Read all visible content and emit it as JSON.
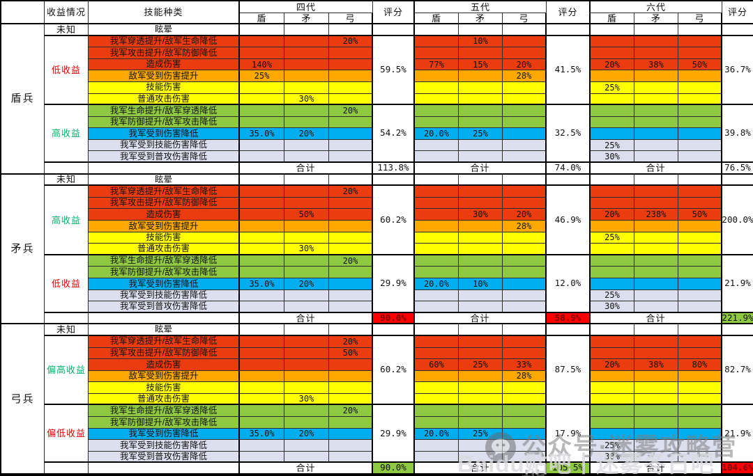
{
  "header": {
    "benefit_col": "收益情况",
    "skill_col": "技能种类",
    "score_col": "评分",
    "generations": [
      "四代",
      "五代",
      "六代"
    ],
    "unit_cols": [
      "盾",
      "矛",
      "弓"
    ]
  },
  "total_label": "合计",
  "skills": [
    "眩晕",
    "我军穿透提升/敌军生命降低",
    "我军攻击提升/敌军防御降低",
    "造成伤害",
    "敌军受到伤害提升",
    "技能伤害",
    "普通攻击伤害",
    "我军生命提升/敌军穿透降低",
    "我军防御提升/敌军攻击降低",
    "我军受到伤害降低",
    "我军受到技能伤害降低",
    "我军受到普攻伤害降低"
  ],
  "row_styles": [
    "white",
    "red",
    "red",
    "red",
    "orange",
    "yellow",
    "yellow",
    "green",
    "green",
    "blue",
    "lavender",
    "lavender"
  ],
  "palette": {
    "white": "#FFFFFF",
    "red": "#EA3C0E",
    "orange": "#FFA800",
    "yellow": "#FFFF00",
    "green": "#8FC841",
    "blue": "#00AEEF",
    "lavender": "#DBDFEE",
    "total_red": "#FF0000",
    "total_red_text": "#7A0505",
    "total_green": "#8FC841",
    "benefit_low_text": "#E60000",
    "benefit_high_text": "#00B26B"
  },
  "sections": [
    {
      "troop": "盾兵",
      "unknown": "未知",
      "group1": {
        "label": "低收益",
        "color": "#E60000"
      },
      "group2": {
        "label": "高收益",
        "color": "#00B26B"
      },
      "gens": [
        {
          "values": [
            [
              "",
              "",
              ""
            ],
            [
              "",
              "",
              "20%"
            ],
            [
              "",
              "",
              ""
            ],
            [
              "140%",
              "",
              ""
            ],
            [
              "25%",
              "",
              ""
            ],
            [
              "",
              "",
              ""
            ],
            [
              "",
              "30%",
              ""
            ],
            [
              "",
              "",
              "20%"
            ],
            [
              "",
              "",
              ""
            ],
            [
              "35.0%",
              "20%",
              ""
            ],
            [
              "",
              "",
              ""
            ],
            [
              "",
              "",
              ""
            ]
          ],
          "score1": "59.5%",
          "score2": "54.2%",
          "total": "113.8%",
          "total_style": "white"
        },
        {
          "values": [
            [
              "",
              "",
              ""
            ],
            [
              "",
              "10%",
              ""
            ],
            [
              "",
              "",
              ""
            ],
            [
              "77%",
              "15%",
              "20%"
            ],
            [
              "",
              "",
              "28%"
            ],
            [
              "",
              "",
              ""
            ],
            [
              "",
              "",
              ""
            ],
            [
              "",
              "",
              ""
            ],
            [
              "",
              "",
              ""
            ],
            [
              "20.0%",
              "25%",
              ""
            ],
            [
              "",
              "",
              ""
            ],
            [
              "",
              "",
              ""
            ]
          ],
          "score1": "41.5%",
          "score2": "32.5%",
          "total": "74.0%",
          "total_style": "white"
        },
        {
          "values": [
            [
              "",
              "",
              ""
            ],
            [
              "",
              "",
              ""
            ],
            [
              "",
              "",
              ""
            ],
            [
              "20%",
              "38%",
              "50%"
            ],
            [
              "",
              "",
              ""
            ],
            [
              "25%",
              "",
              ""
            ],
            [
              "",
              "",
              ""
            ],
            [
              "",
              "",
              ""
            ],
            [
              "",
              "",
              ""
            ],
            [
              "",
              "",
              ""
            ],
            [
              "25%",
              "",
              ""
            ],
            [
              "30%",
              "",
              ""
            ]
          ],
          "score1": "36.7%",
          "score2": "39.8%",
          "total": "76.5%",
          "total_style": "white"
        }
      ]
    },
    {
      "troop": "矛兵",
      "unknown": "未知",
      "group1": {
        "label": "高收益",
        "color": "#00B26B"
      },
      "group2": {
        "label": "低收益",
        "color": "#E60000"
      },
      "gens": [
        {
          "values": [
            [
              "",
              "",
              ""
            ],
            [
              "",
              "",
              "20%"
            ],
            [
              "",
              "",
              ""
            ],
            [
              "",
              "50%",
              ""
            ],
            [
              "",
              "",
              ""
            ],
            [
              "",
              "",
              ""
            ],
            [
              "",
              "30%",
              ""
            ],
            [
              "",
              "",
              "20%"
            ],
            [
              "",
              "",
              ""
            ],
            [
              "35.0%",
              "20%",
              ""
            ],
            [
              "",
              "",
              ""
            ],
            [
              "",
              "",
              ""
            ]
          ],
          "score1": "60.2%",
          "score2": "29.9%",
          "total": "90.0%",
          "total_style": "red"
        },
        {
          "values": [
            [
              "",
              "",
              ""
            ],
            [
              "",
              "",
              ""
            ],
            [
              "",
              "",
              ""
            ],
            [
              "",
              "30%",
              "20%"
            ],
            [
              "",
              "",
              "28%"
            ],
            [
              "",
              "",
              ""
            ],
            [
              "",
              "",
              ""
            ],
            [
              "",
              "",
              ""
            ],
            [
              "",
              "",
              ""
            ],
            [
              "20.0%",
              "10%",
              ""
            ],
            [
              "",
              "",
              ""
            ],
            [
              "",
              "",
              ""
            ]
          ],
          "score1": "46.9%",
          "score2": "12.0%",
          "total": "58.9%",
          "total_style": "red"
        },
        {
          "values": [
            [
              "",
              "",
              ""
            ],
            [
              "",
              "",
              ""
            ],
            [
              "",
              "",
              ""
            ],
            [
              "20%",
              "238%",
              "50%"
            ],
            [
              "",
              "",
              ""
            ],
            [
              "25%",
              "",
              ""
            ],
            [
              "",
              "",
              ""
            ],
            [
              "",
              "",
              ""
            ],
            [
              "",
              "",
              ""
            ],
            [
              "",
              "",
              ""
            ],
            [
              "25%",
              "",
              ""
            ],
            [
              "30%",
              "",
              ""
            ]
          ],
          "score1": "200.0%",
          "score2": "21.9%",
          "total": "221.9%",
          "total_style": "green"
        }
      ]
    },
    {
      "troop": "弓兵",
      "unknown": "未知",
      "group1": {
        "label": "偏高收益",
        "color": "#00B26B"
      },
      "group2": {
        "label": "偏低收益",
        "color": "#E60000"
      },
      "gens": [
        {
          "values": [
            [
              "",
              "",
              ""
            ],
            [
              "",
              "",
              "20%"
            ],
            [
              "",
              "",
              "50%"
            ],
            [
              "",
              "",
              ""
            ],
            [
              "",
              "",
              ""
            ],
            [
              "",
              "",
              ""
            ],
            [
              "",
              "30%",
              ""
            ],
            [
              "",
              "",
              "20%"
            ],
            [
              "",
              "",
              ""
            ],
            [
              "35.0%",
              "20%",
              ""
            ],
            [
              "",
              "",
              ""
            ],
            [
              "",
              "",
              ""
            ]
          ],
          "score1": "60.2%",
          "score2": "29.9%",
          "total": "90.0%",
          "total_style": "green"
        },
        {
          "values": [
            [
              "",
              "",
              ""
            ],
            [
              "",
              "",
              ""
            ],
            [
              "",
              "",
              ""
            ],
            [
              "60%",
              "25%",
              "33%"
            ],
            [
              "",
              "",
              "28%"
            ],
            [
              "",
              "",
              ""
            ],
            [
              "",
              "",
              ""
            ],
            [
              "",
              "",
              ""
            ],
            [
              "",
              "",
              ""
            ],
            [
              "20.0%",
              "25%",
              ""
            ],
            [
              "",
              "",
              ""
            ],
            [
              "",
              "",
              ""
            ]
          ],
          "score1": "87.5%",
          "score2": "17.9%",
          "total": "105.5%",
          "total_style": "green"
        },
        {
          "values": [
            [
              "",
              "",
              ""
            ],
            [
              "",
              "",
              ""
            ],
            [
              "",
              "",
              ""
            ],
            [
              "20%",
              "38%",
              "80%"
            ],
            [
              "",
              "",
              ""
            ],
            [
              "",
              "",
              ""
            ],
            [
              "",
              "",
              ""
            ],
            [
              "",
              "",
              ""
            ],
            [
              "",
              "",
              ""
            ],
            [
              "",
              "",
              ""
            ],
            [
              "25%",
              "",
              ""
            ],
            [
              "30%",
              "",
              ""
            ]
          ],
          "score1": "82.7%",
          "score2": "21.9%",
          "total": "104.6%",
          "total_style": "red"
        }
      ]
    }
  ],
  "watermark": {
    "line1": "公众号·迷雾攻略营地",
    "line2": "Baidu贴吧丨迷雾冬日吧"
  }
}
